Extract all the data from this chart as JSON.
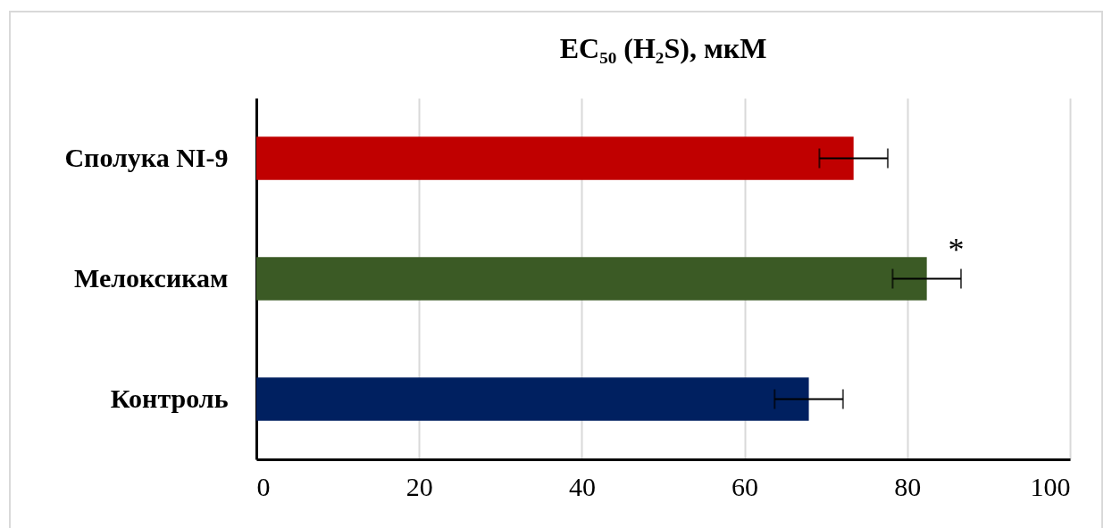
{
  "chart_data": {
    "type": "bar",
    "orientation": "horizontal",
    "title": "EC₅₀ (H₂S), мкМ",
    "categories": [
      "Сполука NI-9",
      "Мелоксикам",
      "Контроль"
    ],
    "values": [
      73.4,
      82.4,
      67.9
    ],
    "colors": [
      "#c00000",
      "#3b5a25",
      "#002060"
    ],
    "errors": [
      4.2,
      4.2,
      4.2
    ],
    "xlim": [
      0,
      100
    ],
    "xticks": [
      0,
      20,
      40,
      60,
      80,
      100
    ],
    "grid": "x",
    "annotations": [
      {
        "text": "*",
        "x": 86,
        "y": "Мелоксикам"
      }
    ]
  }
}
